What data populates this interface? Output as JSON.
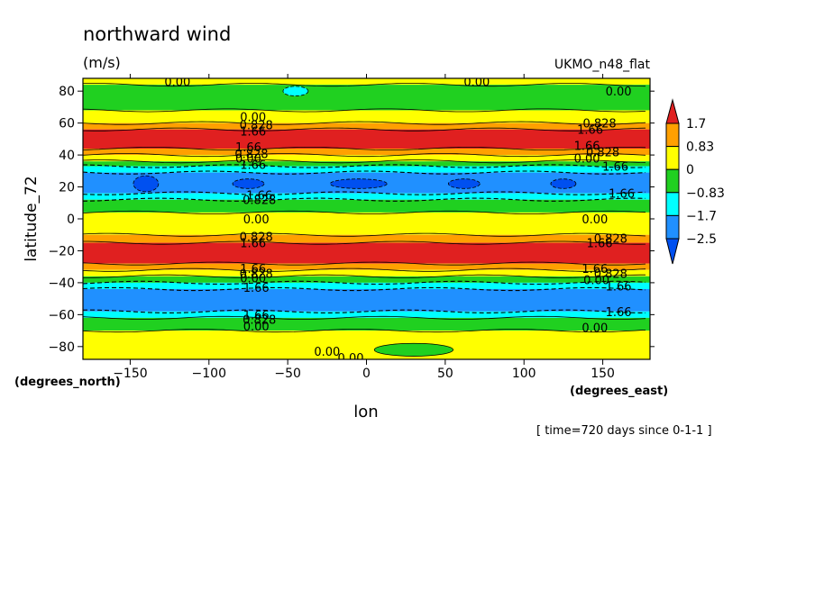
{
  "chart_data": {
    "type": "heatmap",
    "title": "northward wind",
    "units": "(m/s)",
    "model_label": "UKMO_n48_flat",
    "xlabel": "lon",
    "ylabel": "latitude_72",
    "x_units_label": "(degrees_east)",
    "y_units_label": "(degrees_north)",
    "time_note": "[ time=720 days since 0-1-1 ]",
    "xlim": [
      -180,
      180
    ],
    "ylim": [
      -88,
      88
    ],
    "x_ticks": [
      -150,
      -100,
      -50,
      0,
      50,
      100,
      150
    ],
    "x_tick_labels": [
      "−150",
      "−100",
      "−50",
      "0",
      "50",
      "100",
      "150"
    ],
    "y_ticks": [
      -80,
      -60,
      -40,
      -20,
      0,
      20,
      40,
      60,
      80
    ],
    "y_tick_labels": [
      "−80",
      "−60",
      "−40",
      "−20",
      "0",
      "20",
      "40",
      "60",
      "80"
    ],
    "colorbar": {
      "labels": [
        "1.7",
        "0.83",
        "0",
        "−0.83",
        "−1.7",
        "−2.5"
      ],
      "colors": [
        "#e02020",
        "#ffa000",
        "#ffff00",
        "#20d020",
        "#00ffff",
        "#2090ff",
        "#0050f0"
      ]
    },
    "bands": [
      {
        "lat_from": 88,
        "lat_to": 84,
        "color": "#ffff00"
      },
      {
        "lat_from": 84,
        "lat_to": 68,
        "color": "#20d020"
      },
      {
        "lat_from": 68,
        "lat_to": 60,
        "color": "#ffff00"
      },
      {
        "lat_from": 60,
        "lat_to": 56,
        "color": "#ffa000"
      },
      {
        "lat_from": 56,
        "lat_to": 44,
        "color": "#e02020"
      },
      {
        "lat_from": 44,
        "lat_to": 40,
        "color": "#ffa000"
      },
      {
        "lat_from": 40,
        "lat_to": 36,
        "color": "#ffff00"
      },
      {
        "lat_from": 36,
        "lat_to": 33,
        "color": "#20d020"
      },
      {
        "lat_from": 33,
        "lat_to": 29,
        "color": "#00ffff"
      },
      {
        "lat_from": 29,
        "lat_to": 16,
        "color": "#2090ff"
      },
      {
        "lat_from": 16,
        "lat_to": 12,
        "color": "#00ffff"
      },
      {
        "lat_from": 12,
        "lat_to": 4,
        "color": "#20d020"
      },
      {
        "lat_from": 4,
        "lat_to": -10,
        "color": "#ffff00"
      },
      {
        "lat_from": -10,
        "lat_to": -15,
        "color": "#ffa000"
      },
      {
        "lat_from": -15,
        "lat_to": -28,
        "color": "#e02020"
      },
      {
        "lat_from": -28,
        "lat_to": -32,
        "color": "#ffa000"
      },
      {
        "lat_from": -32,
        "lat_to": -36,
        "color": "#ffff00"
      },
      {
        "lat_from": -36,
        "lat_to": -40,
        "color": "#20d020"
      },
      {
        "lat_from": -40,
        "lat_to": -44,
        "color": "#00ffff"
      },
      {
        "lat_from": -44,
        "lat_to": -58,
        "color": "#2090ff"
      },
      {
        "lat_from": -58,
        "lat_to": -62,
        "color": "#00ffff"
      },
      {
        "lat_from": -62,
        "lat_to": -70,
        "color": "#20d020"
      },
      {
        "lat_from": -70,
        "lat_to": -88,
        "color": "#ffff00"
      }
    ],
    "patches": [
      {
        "lon": -140,
        "lat": 22,
        "rlon": 8,
        "rlat": 5,
        "color": "#0050f0"
      },
      {
        "lon": -75,
        "lat": 22,
        "rlon": 10,
        "rlat": 3,
        "color": "#0050f0"
      },
      {
        "lon": -5,
        "lat": 22,
        "rlon": 18,
        "rlat": 3,
        "color": "#0050f0"
      },
      {
        "lon": 62,
        "lat": 22,
        "rlon": 10,
        "rlat": 3,
        "color": "#0050f0"
      },
      {
        "lon": 125,
        "lat": 22,
        "rlon": 8,
        "rlat": 3,
        "color": "#0050f0"
      },
      {
        "lon": -45,
        "lat": 80,
        "rlon": 8,
        "rlat": 3,
        "color": "#00ffff"
      },
      {
        "lon": 30,
        "lat": -82,
        "rlon": 25,
        "rlat": 4,
        "color": "#20d020"
      }
    ],
    "contour_labels": [
      {
        "text": "0.00",
        "lon": -120,
        "lat": 86
      },
      {
        "text": "0.00",
        "lon": 70,
        "lat": 86
      },
      {
        "text": "0.00",
        "lon": 160,
        "lat": 80
      },
      {
        "text": "0.00",
        "lon": -72,
        "lat": 64
      },
      {
        "text": "0.828",
        "lon": -70,
        "lat": 59
      },
      {
        "text": "1.66",
        "lon": -72,
        "lat": 55
      },
      {
        "text": "0.828",
        "lon": 148,
        "lat": 60
      },
      {
        "text": "1.66",
        "lon": 142,
        "lat": 56
      },
      {
        "text": "1.66",
        "lon": -75,
        "lat": 45
      },
      {
        "text": "0.828",
        "lon": -73,
        "lat": 41
      },
      {
        "text": "0.00",
        "lon": -75,
        "lat": 38
      },
      {
        "text": "1.66",
        "lon": -72,
        "lat": 34
      },
      {
        "text": "1.66",
        "lon": 140,
        "lat": 46
      },
      {
        "text": "0.828",
        "lon": 150,
        "lat": 42
      },
      {
        "text": "0.00",
        "lon": 140,
        "lat": 38
      },
      {
        "text": "1.66",
        "lon": 158,
        "lat": 33
      },
      {
        "text": "1.66",
        "lon": -68,
        "lat": 15
      },
      {
        "text": "0.828",
        "lon": -68,
        "lat": 12
      },
      {
        "text": "1.66",
        "lon": 162,
        "lat": 16
      },
      {
        "text": "0.00",
        "lon": -70,
        "lat": 0
      },
      {
        "text": "0.00",
        "lon": 145,
        "lat": 0
      },
      {
        "text": "0.828",
        "lon": -70,
        "lat": -11
      },
      {
        "text": "1.66",
        "lon": -72,
        "lat": -15
      },
      {
        "text": "0.828",
        "lon": 155,
        "lat": -12
      },
      {
        "text": "1.66",
        "lon": 148,
        "lat": -15
      },
      {
        "text": "1.66",
        "lon": -72,
        "lat": -31
      },
      {
        "text": "0.828",
        "lon": -70,
        "lat": -34
      },
      {
        "text": "0.00",
        "lon": -72,
        "lat": -37
      },
      {
        "text": "1.66",
        "lon": -70,
        "lat": -43
      },
      {
        "text": "1.66",
        "lon": 145,
        "lat": -31
      },
      {
        "text": "0.828",
        "lon": 155,
        "lat": -34
      },
      {
        "text": "0.00",
        "lon": 146,
        "lat": -38
      },
      {
        "text": "1.66",
        "lon": 160,
        "lat": -42
      },
      {
        "text": "1.66",
        "lon": -70,
        "lat": -60
      },
      {
        "text": "0.828",
        "lon": -68,
        "lat": -63
      },
      {
        "text": "0.00",
        "lon": -70,
        "lat": -67
      },
      {
        "text": "1.66",
        "lon": 160,
        "lat": -58
      },
      {
        "text": "0.00",
        "lon": 145,
        "lat": -68
      },
      {
        "text": "0.00",
        "lon": -25,
        "lat": -83
      },
      {
        "text": "0.00",
        "lon": -10,
        "lat": -87
      }
    ]
  }
}
